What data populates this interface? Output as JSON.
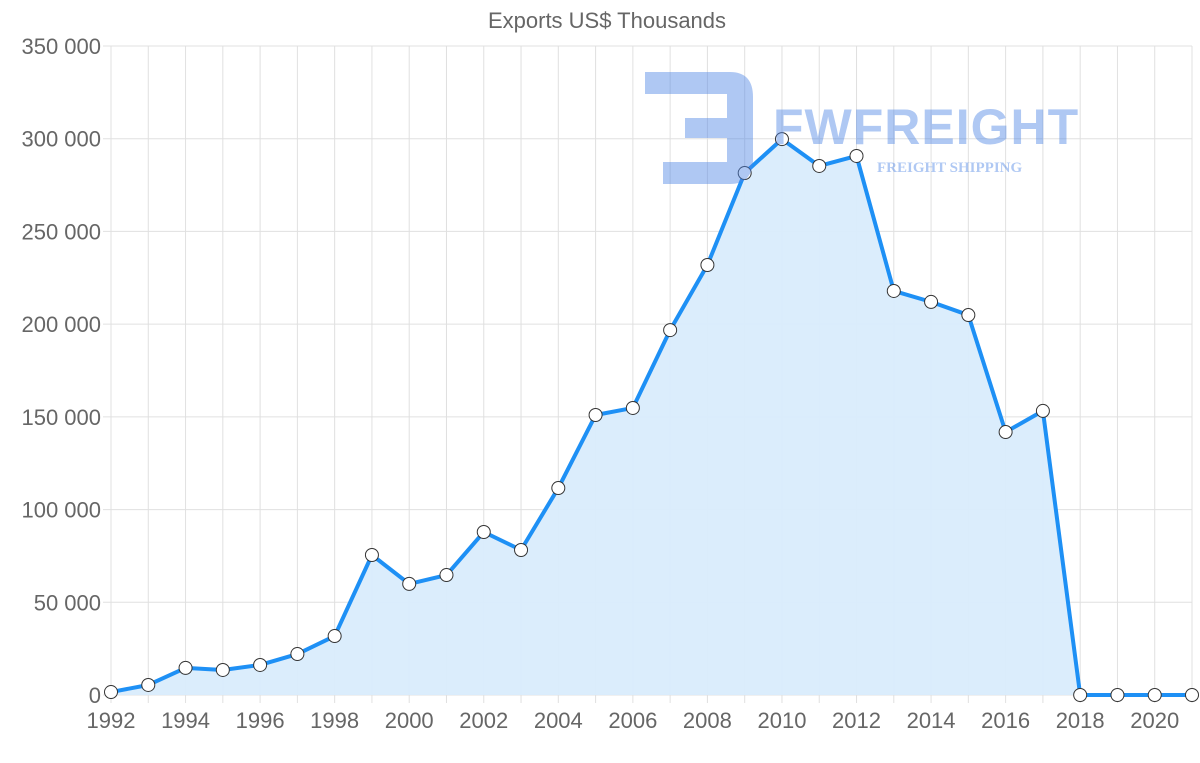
{
  "chart_data": {
    "type": "area",
    "title": "Exports US$ Thousands",
    "xlabel": "",
    "ylabel": "",
    "x": [
      1992,
      1993,
      1994,
      1995,
      1996,
      1997,
      1998,
      1999,
      2000,
      2001,
      2002,
      2003,
      2004,
      2005,
      2006,
      2007,
      2008,
      2009,
      2010,
      2011,
      2012,
      2013,
      2014,
      2015,
      2016,
      2017,
      2018,
      2019,
      2020,
      2021
    ],
    "series": [
      {
        "name": "Exports US$ Thousands",
        "values": [
          1600,
          5400,
          14600,
          13500,
          16200,
          22100,
          31800,
          75500,
          59900,
          64700,
          87900,
          78200,
          111600,
          151000,
          154800,
          196800,
          231900,
          281500,
          299800,
          285300,
          290700,
          217900,
          212000,
          204900,
          141800,
          153200,
          0,
          0,
          0,
          0
        ]
      }
    ],
    "ylim": [
      0,
      350000
    ],
    "yticks": [
      0,
      50000,
      100000,
      150000,
      200000,
      250000,
      300000,
      350000
    ],
    "ytick_labels": [
      "0",
      "50 000",
      "100 000",
      "150 000",
      "200 000",
      "250 000",
      "300 000",
      "350 000"
    ],
    "xtick_labels": [
      "1992",
      "1994",
      "1996",
      "1998",
      "2000",
      "2002",
      "2004",
      "2006",
      "2008",
      "2010",
      "2012",
      "2014",
      "2016",
      "2018",
      "2020"
    ],
    "grid": true,
    "legend": "none",
    "colors": {
      "line": "#1e90f5",
      "fill": "#d9ecfc",
      "grid": "#e0e0e0",
      "text": "#666666"
    }
  },
  "watermark": {
    "name": "FWFREIGHT",
    "tagline": "FREIGHT SHIPPING"
  }
}
